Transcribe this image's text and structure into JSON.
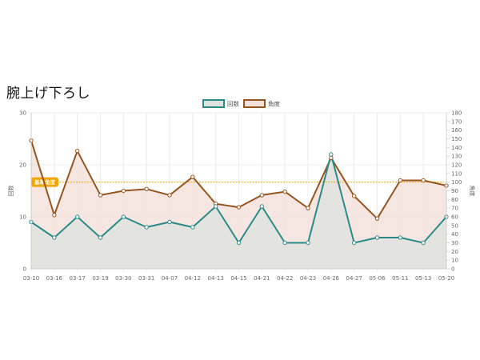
{
  "page": {
    "title": "腕上げ下ろし"
  },
  "chart_data": {
    "type": "line",
    "categories": [
      "03-10",
      "03-16",
      "03-17",
      "03-19",
      "03-30",
      "03-31",
      "04-07",
      "04-12",
      "04-13",
      "04-15",
      "04-21",
      "04-22",
      "04-23",
      "04-26",
      "04-27",
      "05-06",
      "05-11",
      "05-13",
      "05-20"
    ],
    "series": [
      {
        "name": "回数",
        "axis": "left",
        "color": "#2a8a8a",
        "fill": "#dfe3df",
        "values": [
          9,
          6,
          10,
          6,
          10,
          8,
          9,
          8,
          12,
          5,
          12,
          5,
          5,
          22,
          5,
          6,
          6,
          5,
          10
        ]
      },
      {
        "name": "角度",
        "axis": "right",
        "color": "#96541e",
        "fill": "#f4e2dc",
        "values": [
          148,
          62,
          136,
          85,
          90,
          92,
          85,
          106,
          75,
          71,
          85,
          89,
          70,
          128,
          84,
          58,
          102,
          102,
          96
        ]
      }
    ],
    "y_left": {
      "label": "回数",
      "min": 0,
      "max": 30,
      "ticks": [
        0,
        10,
        20,
        30
      ]
    },
    "y_right": {
      "label": "角度",
      "min": 0,
      "max": 180,
      "ticks": [
        0,
        10,
        20,
        30,
        40,
        50,
        60,
        70,
        80,
        90,
        100,
        110,
        120,
        130,
        140,
        150,
        160,
        170,
        180
      ]
    },
    "reference": {
      "label": "基準角度",
      "value": 100,
      "axis": "right",
      "color": "#f0a500"
    },
    "legend": "top",
    "grid": true
  }
}
